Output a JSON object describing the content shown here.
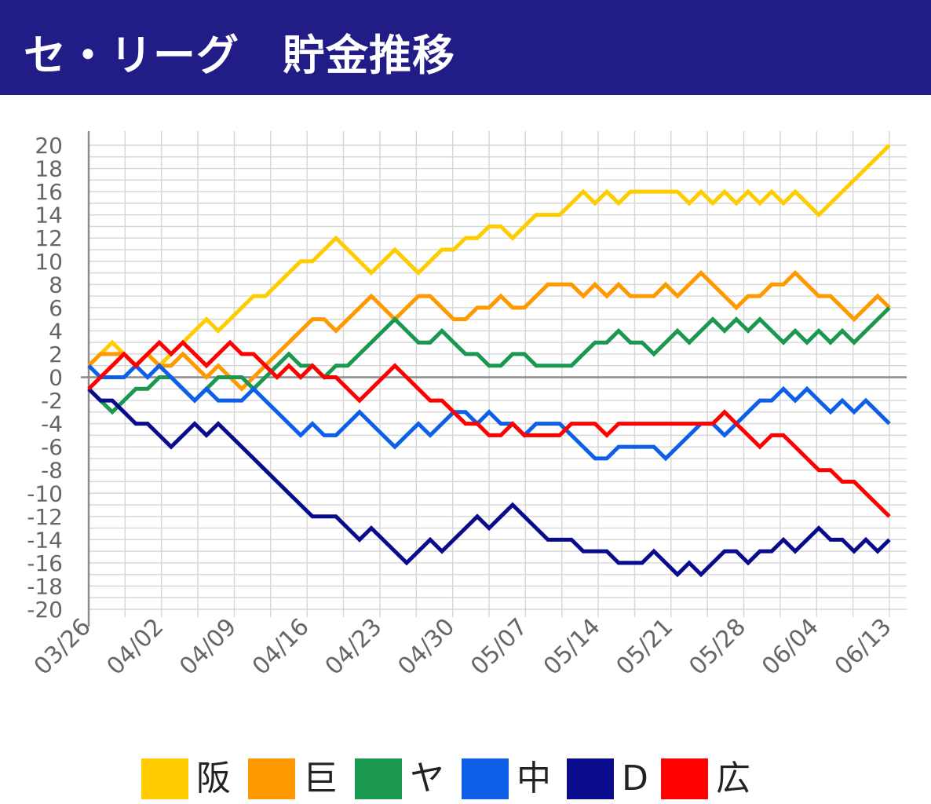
{
  "header": {
    "title": "セ・リーグ　貯金推移"
  },
  "chart_data": {
    "type": "line",
    "title": "セ・リーグ　貯金推移",
    "xlabel": "",
    "ylabel": "",
    "ylim": [
      -20,
      20
    ],
    "yticks": [
      20,
      18,
      16,
      14,
      12,
      10,
      8,
      6,
      4,
      2,
      0,
      -2,
      -4,
      -6,
      -8,
      -10,
      -12,
      -14,
      -16,
      -18,
      -20
    ],
    "xtick_labels": [
      "03/26",
      "04/02",
      "04/09",
      "04/16",
      "04/23",
      "04/30",
      "05/07",
      "05/14",
      "05/21",
      "05/28",
      "06/04",
      "06/13"
    ],
    "x_count": 69,
    "legend_position": "bottom",
    "series": [
      {
        "name": "阪",
        "color": "#ffcc00",
        "values": [
          1,
          2,
          3,
          2,
          1,
          2,
          1,
          2,
          3,
          4,
          5,
          4,
          5,
          6,
          7,
          7,
          8,
          9,
          10,
          10,
          11,
          12,
          11,
          10,
          9,
          10,
          11,
          10,
          9,
          10,
          11,
          11,
          12,
          12,
          13,
          13,
          12,
          13,
          14,
          14,
          14,
          15,
          16,
          15,
          16,
          15,
          16,
          16,
          16,
          16,
          16,
          15,
          16,
          15,
          16,
          15,
          16,
          15,
          16,
          15,
          16,
          15,
          14,
          15,
          16,
          17,
          18,
          19,
          20
        ]
      },
      {
        "name": "巨",
        "color": "#ff9900",
        "values": [
          1,
          2,
          2,
          2,
          1,
          2,
          1,
          1,
          2,
          1,
          0,
          1,
          0,
          -1,
          0,
          1,
          2,
          3,
          4,
          5,
          5,
          4,
          5,
          6,
          7,
          6,
          5,
          6,
          7,
          7,
          6,
          5,
          5,
          6,
          6,
          7,
          6,
          6,
          7,
          8,
          8,
          8,
          7,
          8,
          7,
          8,
          7,
          7,
          7,
          8,
          7,
          8,
          9,
          8,
          7,
          6,
          7,
          7,
          8,
          8,
          9,
          8,
          7,
          7,
          6,
          5,
          6,
          7,
          6
        ]
      },
      {
        "name": "ヤ",
        "color": "#1a9850",
        "values": [
          -1,
          -2,
          -3,
          -2,
          -1,
          -1,
          0,
          0,
          -1,
          -2,
          -1,
          0,
          0,
          0,
          -1,
          0,
          1,
          2,
          1,
          1,
          0,
          1,
          1,
          2,
          3,
          4,
          5,
          4,
          3,
          3,
          4,
          3,
          2,
          2,
          1,
          1,
          2,
          2,
          1,
          1,
          1,
          1,
          2,
          3,
          3,
          4,
          3,
          3,
          2,
          3,
          4,
          3,
          4,
          5,
          4,
          5,
          4,
          5,
          4,
          3,
          4,
          3,
          4,
          3,
          4,
          3,
          4,
          5,
          6
        ]
      },
      {
        "name": "中",
        "color": "#0d5fe8",
        "values": [
          1,
          0,
          0,
          0,
          1,
          0,
          1,
          0,
          -1,
          -2,
          -1,
          -2,
          -2,
          -2,
          -1,
          -2,
          -3,
          -4,
          -5,
          -4,
          -5,
          -5,
          -4,
          -3,
          -4,
          -5,
          -6,
          -5,
          -4,
          -5,
          -4,
          -3,
          -3,
          -4,
          -3,
          -4,
          -4,
          -5,
          -4,
          -4,
          -4,
          -5,
          -6,
          -7,
          -7,
          -6,
          -6,
          -6,
          -6,
          -7,
          -6,
          -5,
          -4,
          -4,
          -5,
          -4,
          -3,
          -2,
          -2,
          -1,
          -2,
          -1,
          -2,
          -3,
          -2,
          -3,
          -2,
          -3,
          -4
        ]
      },
      {
        "name": "D",
        "color": "#0a0a8c",
        "values": [
          -1,
          -2,
          -2,
          -3,
          -4,
          -4,
          -5,
          -6,
          -5,
          -4,
          -5,
          -4,
          -5,
          -6,
          -7,
          -8,
          -9,
          -10,
          -11,
          -12,
          -12,
          -12,
          -13,
          -14,
          -13,
          -14,
          -15,
          -16,
          -15,
          -14,
          -15,
          -14,
          -13,
          -12,
          -13,
          -12,
          -11,
          -12,
          -13,
          -14,
          -14,
          -14,
          -15,
          -15,
          -15,
          -16,
          -16,
          -16,
          -15,
          -16,
          -17,
          -16,
          -17,
          -16,
          -15,
          -15,
          -16,
          -15,
          -15,
          -14,
          -15,
          -14,
          -13,
          -14,
          -14,
          -15,
          -14,
          -15,
          -14
        ]
      },
      {
        "name": "広",
        "color": "#ff0000",
        "values": [
          -1,
          0,
          1,
          2,
          1,
          2,
          3,
          2,
          3,
          2,
          1,
          2,
          3,
          2,
          2,
          1,
          0,
          1,
          0,
          1,
          0,
          0,
          -1,
          -2,
          -1,
          0,
          1,
          0,
          -1,
          -2,
          -2,
          -3,
          -4,
          -4,
          -5,
          -5,
          -4,
          -5,
          -5,
          -5,
          -5,
          -4,
          -4,
          -4,
          -5,
          -4,
          -4,
          -4,
          -4,
          -4,
          -4,
          -4,
          -4,
          -4,
          -3,
          -4,
          -5,
          -6,
          -5,
          -5,
          -6,
          -7,
          -8,
          -8,
          -9,
          -9,
          -10,
          -11,
          -12
        ]
      }
    ]
  }
}
